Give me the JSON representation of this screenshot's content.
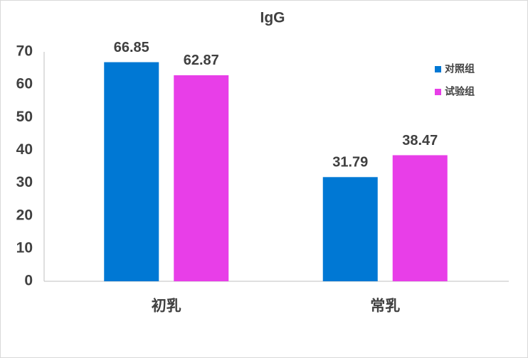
{
  "chart_data": {
    "type": "bar",
    "title": "IgG",
    "categories": [
      "初乳",
      "常乳"
    ],
    "series": [
      {
        "name": "对照组",
        "color": "#0078d4",
        "values": [
          66.85,
          31.79
        ]
      },
      {
        "name": "试验组",
        "color": "#e83ee8",
        "values": [
          62.87,
          38.47
        ]
      }
    ],
    "ylim": [
      0,
      70
    ],
    "yticks": [
      0,
      10,
      20,
      30,
      40,
      50,
      60,
      70
    ],
    "grid": false,
    "legend": "top-right"
  }
}
